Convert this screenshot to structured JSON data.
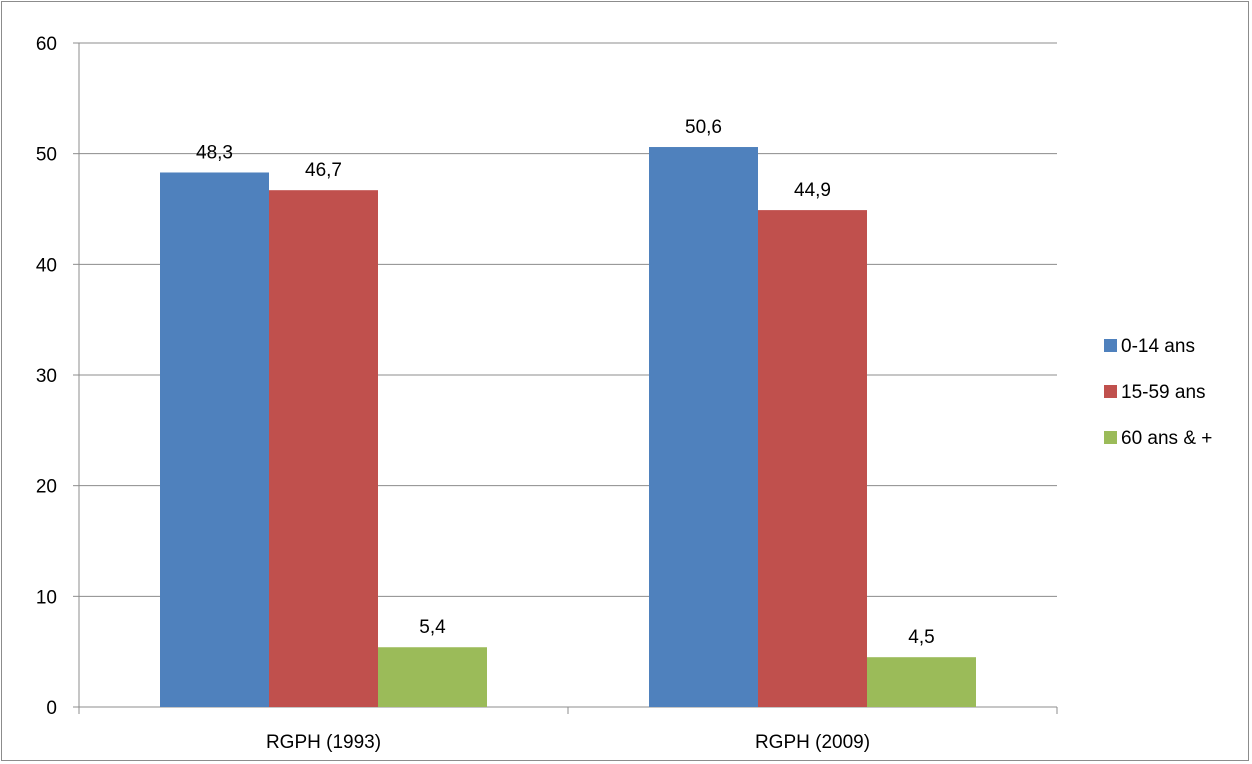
{
  "chart_data": {
    "type": "bar",
    "title": "",
    "xlabel": "",
    "ylabel": "",
    "ylim": [
      0,
      60
    ],
    "yticks": [
      0,
      10,
      20,
      30,
      40,
      50,
      60
    ],
    "grid": true,
    "legend_position": "right",
    "categories": [
      "RGPH (1993)",
      "RGPH (2009)"
    ],
    "series": [
      {
        "name": "0-14 ans",
        "color": "#4f81bd",
        "values": [
          48.3,
          50.6
        ],
        "labels": [
          "48,3",
          "50,6"
        ]
      },
      {
        "name": "15-59 ans",
        "color": "#c0504d",
        "values": [
          46.7,
          44.9
        ],
        "labels": [
          "46,7",
          "44,9"
        ]
      },
      {
        "name": "60 ans & +",
        "color": "#9bbb59",
        "values": [
          5.4,
          4.5
        ],
        "labels": [
          "5,4",
          "4,5"
        ]
      }
    ]
  }
}
